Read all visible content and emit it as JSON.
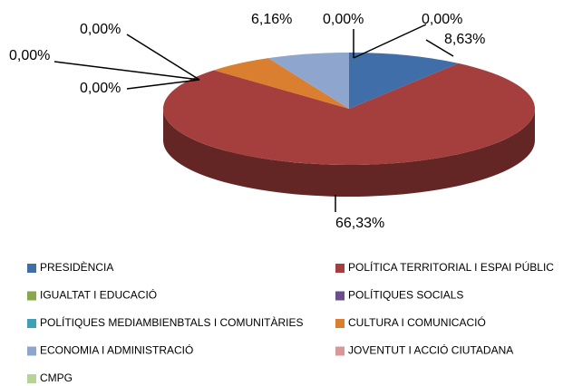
{
  "chart_data": {
    "type": "pie",
    "categories": [
      "PRESIDÈNCIA",
      "POLÍTICA TERRITORIAL  I ESPAI PÚBLIC",
      "IGUALTAT I EDUCACIÓ",
      "POLÍTIQUES SOCIALS",
      "POLÍTIQUES MEDIAMBIENBTALS  I COMUNITÀRIES",
      "CULTURA I COMUNICACIÓ",
      "ECONOMIA I ADMINISTRACIÓ",
      "JOVENTUT  I ACCIÓ CIUTADANA",
      "CMPG"
    ],
    "values": [
      8.63,
      66.33,
      0,
      0,
      0,
      5,
      6.16,
      0,
      0
    ],
    "value_labels": [
      "8,63%",
      "66,33%",
      "0,00%",
      "0,00%",
      "0,00%",
      null,
      "6,16%",
      "0,00%",
      "0,00%"
    ],
    "colors": [
      "#3f6ea8",
      "#a53f3e",
      "#87a84a",
      "#6a4f8c",
      "#3ea0b6",
      "#d97f2f",
      "#8ea6cd",
      "#d89898",
      "#b6d496"
    ]
  }
}
